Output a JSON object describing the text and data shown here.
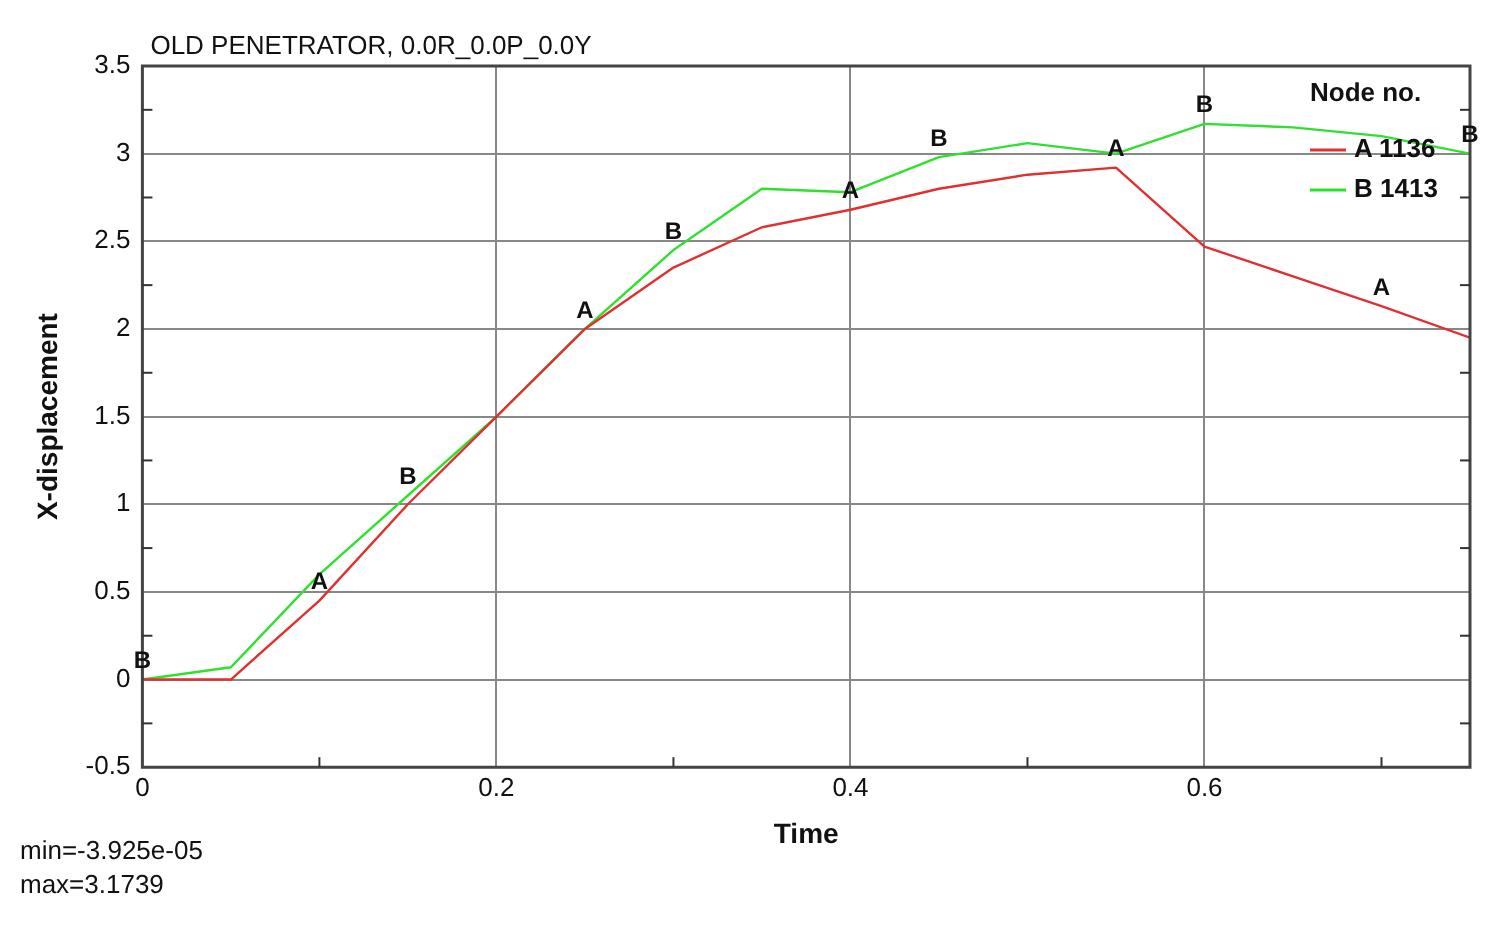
{
  "chart_data": {
    "type": "line",
    "title": "OLD PENETRATOR, 0.0R_0.0P_0.0Y",
    "xlabel": "Time",
    "ylabel": "X-displacement",
    "legend_title": "Node no.",
    "x": [
      0,
      0.05,
      0.1,
      0.15,
      0.2,
      0.25,
      0.3,
      0.35,
      0.4,
      0.45,
      0.5,
      0.55,
      0.6,
      0.65,
      0.7,
      0.75
    ],
    "series": [
      {
        "name": "A 1136",
        "color": "#e03030",
        "values": [
          0,
          0,
          0.45,
          1.0,
          1.5,
          2.0,
          2.35,
          2.58,
          2.68,
          2.8,
          2.88,
          2.92,
          2.47,
          2.3,
          2.13,
          1.95
        ]
      },
      {
        "name": "B 1413",
        "color": "#30e030",
        "values": [
          0,
          0.07,
          0.6,
          1.05,
          1.5,
          2.0,
          2.45,
          2.8,
          2.78,
          2.98,
          3.06,
          3.0,
          3.17,
          3.15,
          3.1,
          3.0
        ]
      }
    ],
    "xlim": [
      0,
      0.75
    ],
    "ylim": [
      -0.5,
      3.5
    ],
    "xticks": [
      0,
      {
        "value": 0.1,
        "label": null
      },
      0.2,
      {
        "value": 0.3,
        "label": null
      },
      0.4,
      {
        "value": 0.5,
        "label": null
      },
      0.6,
      {
        "value": 0.7,
        "label": null
      }
    ],
    "yticks": [
      -0.5,
      {
        "value": -0.25,
        "label": null
      },
      0,
      {
        "value": 0.25,
        "label": null
      },
      0.5,
      {
        "value": 0.75,
        "label": null
      },
      1,
      {
        "value": 1.25,
        "label": null
      },
      1.5,
      {
        "value": 1.75,
        "label": null
      },
      2,
      {
        "value": 2.25,
        "label": null
      },
      2.5,
      {
        "value": 2.75,
        "label": null
      },
      3,
      {
        "value": 3.25,
        "label": null
      },
      3.5
    ],
    "grid": true,
    "legend": "top right",
    "marker": "none",
    "line_style": "solid",
    "annotations": [
      {
        "text": "B",
        "x": 0,
        "y": 0
      },
      {
        "text": "A",
        "x": 0.1,
        "y": 0.45
      },
      {
        "text": "B",
        "x": 0.15,
        "y": 1.05
      },
      {
        "text": "A",
        "x": 0.25,
        "y": 2.0
      },
      {
        "text": "B",
        "x": 0.3,
        "y": 2.45
      },
      {
        "text": "A",
        "x": 0.4,
        "y": 2.68
      },
      {
        "text": "B",
        "x": 0.45,
        "y": 2.98
      },
      {
        "text": "A",
        "x": 0.55,
        "y": 2.92
      },
      {
        "text": "B",
        "x": 0.6,
        "y": 3.17
      },
      {
        "text": "A",
        "x": 0.7,
        "y": 2.13
      },
      {
        "text": "B",
        "x": 0.75,
        "y": 3.0
      },
      "min=-3.925e-05",
      "max=3.1739"
    ]
  }
}
